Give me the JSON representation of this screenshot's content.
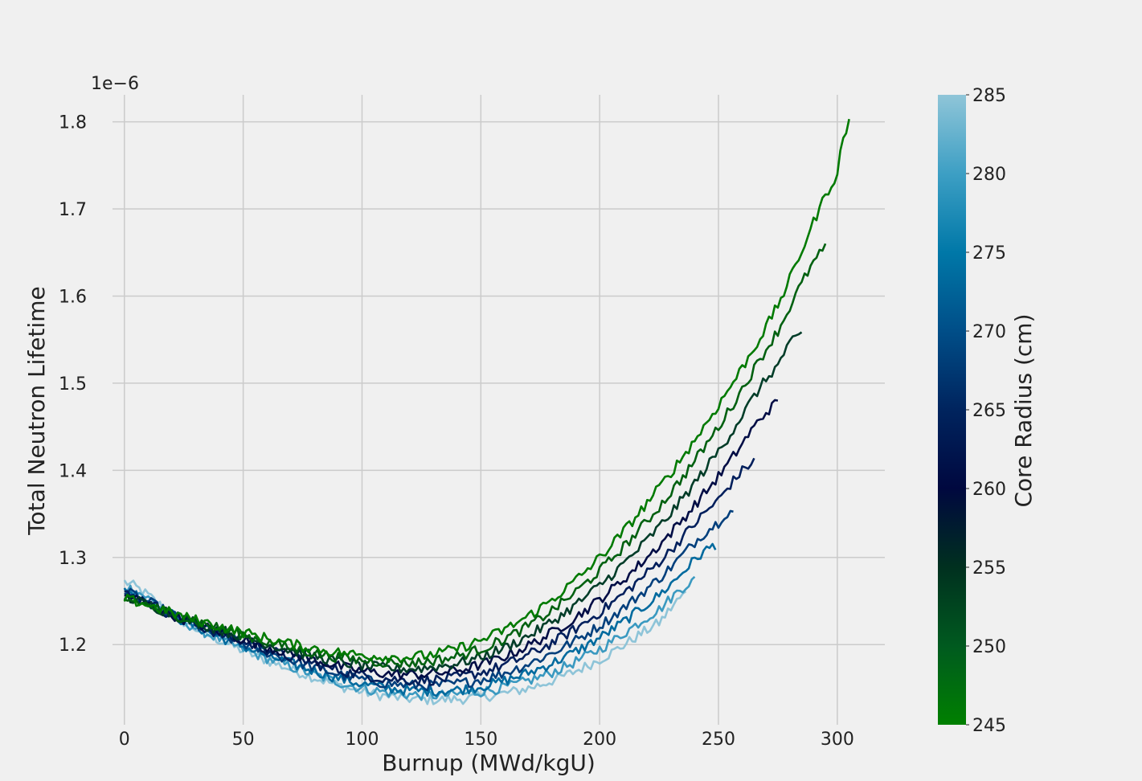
{
  "chart_data": {
    "type": "line",
    "xlabel": "Burnup (MWd/kgU)",
    "ylabel": "Total Neutron Lifetime",
    "y_offset_label": "1e−6",
    "xlim": [
      -5,
      320
    ],
    "ylim": [
      1.108,
      1.831
    ],
    "x_ticks": [
      "0",
      "50",
      "100",
      "150",
      "200",
      "250",
      "300"
    ],
    "y_ticks": [
      "1.2",
      "1.3",
      "1.4",
      "1.5",
      "1.6",
      "1.7",
      "1.8"
    ],
    "grid": true,
    "colorbar": {
      "label": "Core Radius (cm)",
      "ticks": [
        "245",
        "250",
        "255",
        "260",
        "265",
        "270",
        "275",
        "280",
        "285"
      ],
      "range": [
        245,
        285
      ],
      "colormap": [
        "#008000",
        "#005a1f",
        "#00301f",
        "#00083f",
        "#00245e",
        "#004e88",
        "#0078a8",
        "#3d9fc4",
        "#8fc5d8"
      ]
    },
    "series": [
      {
        "radius": 245,
        "color": "#007a00",
        "x": [
          0,
          25,
          50,
          75,
          100,
          125,
          150,
          175,
          200,
          225,
          250,
          275,
          300,
          305
        ],
        "y": [
          1.252,
          1.232,
          1.214,
          1.198,
          1.188,
          1.187,
          1.205,
          1.242,
          1.3,
          1.38,
          1.475,
          1.59,
          1.74,
          1.8
        ]
      },
      {
        "radius": 250,
        "color": "#006010",
        "x": [
          0,
          25,
          50,
          75,
          100,
          125,
          150,
          175,
          200,
          225,
          250,
          275,
          295
        ],
        "y": [
          1.252,
          1.231,
          1.211,
          1.193,
          1.182,
          1.18,
          1.195,
          1.23,
          1.285,
          1.358,
          1.45,
          1.56,
          1.655
        ]
      },
      {
        "radius": 255,
        "color": "#003c28",
        "x": [
          0,
          25,
          50,
          75,
          100,
          125,
          150,
          175,
          200,
          225,
          250,
          275,
          285
        ],
        "y": [
          1.254,
          1.23,
          1.209,
          1.19,
          1.176,
          1.173,
          1.186,
          1.218,
          1.268,
          1.335,
          1.422,
          1.52,
          1.556
        ]
      },
      {
        "radius": 260,
        "color": "#000d45",
        "x": [
          0,
          25,
          50,
          75,
          100,
          125,
          150,
          175,
          200,
          225,
          250,
          275
        ],
        "y": [
          1.256,
          1.229,
          1.206,
          1.186,
          1.17,
          1.166,
          1.177,
          1.206,
          1.252,
          1.314,
          1.393,
          1.478
        ]
      },
      {
        "radius": 265,
        "color": "#001f5c",
        "x": [
          0,
          25,
          50,
          75,
          100,
          125,
          150,
          175,
          200,
          225,
          250,
          266
        ],
        "y": [
          1.258,
          1.228,
          1.203,
          1.182,
          1.165,
          1.159,
          1.168,
          1.195,
          1.237,
          1.295,
          1.366,
          1.412
        ]
      },
      {
        "radius": 270,
        "color": "#003f7c",
        "x": [
          0,
          25,
          50,
          75,
          100,
          125,
          150,
          175,
          200,
          225,
          250,
          257
        ],
        "y": [
          1.26,
          1.228,
          1.201,
          1.178,
          1.16,
          1.153,
          1.16,
          1.184,
          1.222,
          1.276,
          1.34,
          1.354
        ]
      },
      {
        "radius": 275,
        "color": "#006a9e",
        "x": [
          0,
          25,
          50,
          75,
          100,
          125,
          150,
          175,
          200,
          225,
          249
        ],
        "y": [
          1.263,
          1.227,
          1.198,
          1.174,
          1.155,
          1.147,
          1.152,
          1.173,
          1.208,
          1.257,
          1.315
        ]
      },
      {
        "radius": 280,
        "color": "#3a99c0",
        "x": [
          0,
          25,
          50,
          75,
          100,
          125,
          150,
          175,
          200,
          225,
          240
        ],
        "y": [
          1.267,
          1.226,
          1.195,
          1.17,
          1.15,
          1.142,
          1.146,
          1.163,
          1.195,
          1.24,
          1.274
        ]
      },
      {
        "radius": 285,
        "color": "#8ec4d8",
        "x": [
          0,
          25,
          50,
          75,
          100,
          125,
          150,
          175,
          200,
          225,
          237
        ],
        "y": [
          1.272,
          1.226,
          1.193,
          1.167,
          1.146,
          1.137,
          1.14,
          1.154,
          1.183,
          1.225,
          1.26
        ]
      }
    ]
  }
}
